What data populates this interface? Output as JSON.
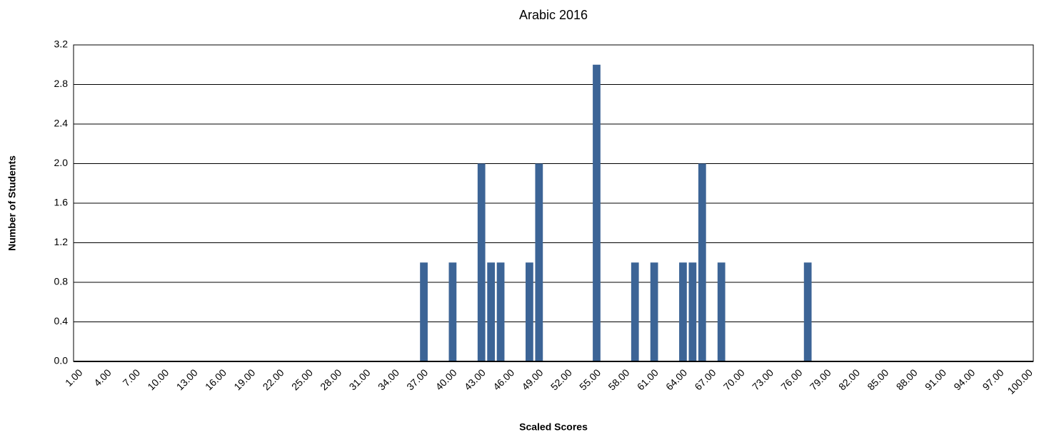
{
  "chart_data": {
    "type": "bar",
    "title": "Arabic 2016",
    "x_label": "Scaled Scores",
    "y_label": "Number of Students",
    "categories": [
      "1.00",
      null,
      null,
      "4.00",
      null,
      null,
      "7.00",
      null,
      null,
      "10.00",
      null,
      null,
      "13.00",
      null,
      null,
      "16.00",
      null,
      null,
      "19.00",
      null,
      null,
      "22.00",
      null,
      null,
      "25.00",
      null,
      null,
      "28.00",
      null,
      null,
      "31.00",
      null,
      null,
      "34.00",
      null,
      null,
      "37.00",
      null,
      null,
      "40.00",
      null,
      null,
      "43.00",
      null,
      null,
      "46.00",
      null,
      null,
      "49.00",
      null,
      null,
      "52.00",
      null,
      null,
      "55.00",
      null,
      null,
      "58.00",
      null,
      null,
      "61.00",
      null,
      null,
      "64.00",
      null,
      null,
      "67.00",
      null,
      null,
      "70.00",
      null,
      null,
      "73.00",
      null,
      null,
      "76.00",
      null,
      null,
      "79.00",
      null,
      null,
      "82.00",
      null,
      null,
      "85.00",
      null,
      null,
      "88.00",
      null,
      null,
      "91.00",
      null,
      null,
      "94.00",
      null,
      null,
      "97.00",
      null,
      null,
      "100.00"
    ],
    "values": [
      0,
      0,
      0,
      0,
      0,
      0,
      0,
      0,
      0,
      0,
      0,
      0,
      0,
      0,
      0,
      0,
      0,
      0,
      0,
      0,
      0,
      0,
      0,
      0,
      0,
      0,
      0,
      0,
      0,
      0,
      0,
      0,
      0,
      0,
      0,
      0,
      1,
      0,
      0,
      1,
      0,
      0,
      2,
      1,
      1,
      0,
      0,
      1,
      2,
      0,
      0,
      0,
      0,
      0,
      3,
      0,
      0,
      0,
      1,
      0,
      1,
      0,
      0,
      1,
      1,
      2,
      0,
      1,
      0,
      0,
      0,
      0,
      0,
      0,
      0,
      0,
      1,
      0,
      0,
      0,
      0,
      0,
      0,
      0,
      0,
      0,
      0,
      0,
      0,
      0,
      0,
      0,
      0,
      0,
      0,
      0,
      0,
      0,
      0,
      0
    ],
    "color": "#3c6496",
    "ylim": [
      0,
      3.2
    ],
    "yticks": [
      {
        "value": 0,
        "label": "0.0"
      },
      0.4,
      0.8,
      1.2,
      1.6,
      {
        "value": 2,
        "label": "2.0"
      },
      2.4,
      2.8,
      3.2
    ],
    "grid": true
  }
}
